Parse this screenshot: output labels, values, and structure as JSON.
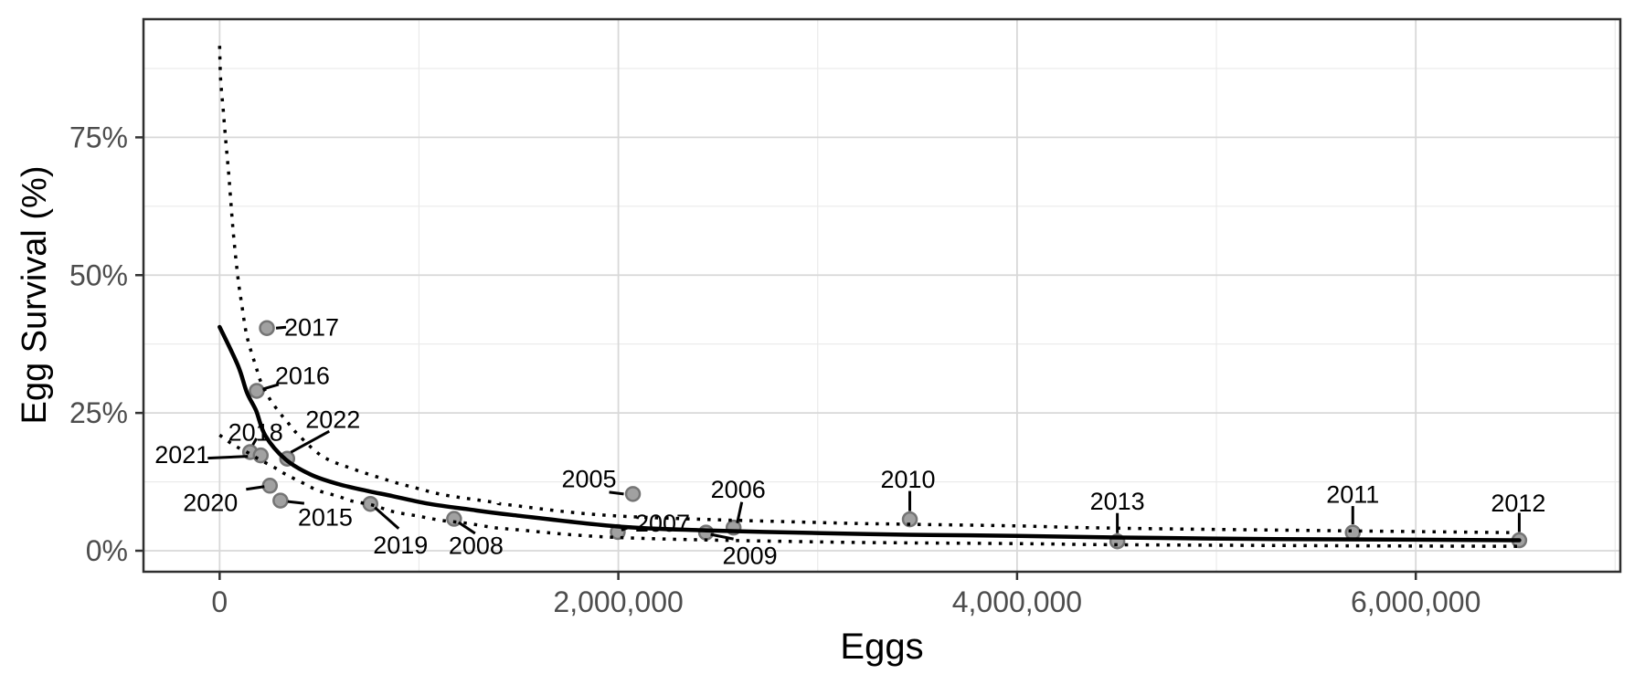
{
  "chart_data": {
    "type": "scatter",
    "title": "",
    "xlabel": "Eggs",
    "ylabel": "Egg Survival (%)",
    "legend": "none",
    "grid": "on",
    "x_axis": {
      "lim": [
        -382000,
        7026000
      ],
      "ticks": [
        {
          "value": 0,
          "label": "0"
        },
        {
          "value": 2000000,
          "label": "2,000,000"
        },
        {
          "value": 4000000,
          "label": "4,000,000"
        },
        {
          "value": 6000000,
          "label": "6,000,000"
        }
      ],
      "minor": [
        1000000,
        3000000,
        5000000,
        7000000
      ]
    },
    "y_axis": {
      "lim": [
        -3.81,
        96.44
      ],
      "ticks": [
        {
          "value": 0,
          "label": "0%"
        },
        {
          "value": 25,
          "label": "25%"
        },
        {
          "value": 50,
          "label": "50%"
        },
        {
          "value": 75,
          "label": "75%"
        }
      ],
      "minor": [
        12.5,
        37.5,
        62.5,
        87.5
      ]
    },
    "points": [
      {
        "year": "2005",
        "eggs": 2073000,
        "survival_pct": 10.3,
        "label": [
          -48,
          -17
        ],
        "leader": [
          -26,
          -2,
          -10,
          0
        ]
      },
      {
        "year": "2006",
        "eggs": 2578000,
        "survival_pct": 4.2,
        "label": [
          5,
          -42
        ],
        "leader": [
          4,
          -5,
          9,
          -28
        ]
      },
      {
        "year": "2007",
        "eggs": 1997000,
        "survival_pct": 3.4,
        "label": [
          49,
          -10
        ],
        "leader": [
          4,
          -2,
          15,
          -6
        ]
      },
      {
        "year": "2008",
        "eggs": 1176000,
        "survival_pct": 5.8,
        "label": [
          24,
          29
        ],
        "leader": [
          5,
          4,
          23,
          16
        ]
      },
      {
        "year": "2009",
        "eggs": 2440000,
        "survival_pct": 3.3,
        "label": [
          48,
          25
        ],
        "leader": [
          5,
          2,
          30,
          7
        ]
      },
      {
        "year": "2010",
        "eggs": 3462000,
        "survival_pct": 5.7,
        "label": [
          -2,
          -44
        ],
        "leader": [
          0,
          -9,
          0,
          -31
        ]
      },
      {
        "year": "2011",
        "eggs": 5684000,
        "survival_pct": 3.3,
        "label": [
          0,
          -42
        ],
        "leader": [
          0,
          -9,
          0,
          -29
        ]
      },
      {
        "year": "2012",
        "eggs": 6519000,
        "survival_pct": 1.9,
        "label": [
          -1,
          -41
        ],
        "leader": [
          0,
          -9,
          0,
          -30
        ]
      },
      {
        "year": "2013",
        "eggs": 4503000,
        "survival_pct": 1.7,
        "label": [
          0,
          -44
        ],
        "leader": [
          0,
          -9,
          0,
          -31
        ]
      },
      {
        "year": "2015",
        "eggs": 305000,
        "survival_pct": 9.1,
        "label": [
          49,
          18
        ],
        "leader": [
          8,
          1,
          26,
          3
        ]
      },
      {
        "year": "2016",
        "eggs": 186000,
        "survival_pct": 29.0,
        "label": [
          50,
          -17
        ],
        "leader": [
          7,
          -2,
          24,
          -7
        ]
      },
      {
        "year": "2017",
        "eggs": 237000,
        "survival_pct": 40.4,
        "label": [
          49,
          -1
        ],
        "leader": [
          10,
          0,
          21,
          -1
        ]
      },
      {
        "year": "2018",
        "eggs": 153000,
        "survival_pct": 17.9,
        "label": [
          6,
          -22
        ],
        "leader": [
          3,
          -8,
          7,
          -15
        ]
      },
      {
        "year": "2019",
        "eggs": 756000,
        "survival_pct": 8.5,
        "label": [
          33,
          45
        ],
        "leader": [
          5,
          4,
          31,
          27
        ]
      },
      {
        "year": "2020",
        "eggs": 252000,
        "survival_pct": 11.8,
        "label": [
          -65,
          18
        ],
        "leader": [
          -26,
          4,
          -6,
          1
        ]
      },
      {
        "year": "2021",
        "eggs": 206000,
        "survival_pct": 17.3,
        "label": [
          -86,
          -1
        ],
        "leader": [
          -58,
          3,
          -14,
          1
        ]
      },
      {
        "year": "2022",
        "eggs": 339000,
        "survival_pct": 16.7,
        "label": [
          50,
          -43
        ],
        "leader": [
          46,
          -30,
          4,
          -7
        ]
      }
    ],
    "fit_line": [
      [
        0,
        40.6
      ],
      [
        92000,
        33.6
      ],
      [
        137000,
        28.7
      ],
      [
        183000,
        25.4
      ],
      [
        229000,
        20.9
      ],
      [
        330000,
        16.6
      ],
      [
        458000,
        13.8
      ],
      [
        595000,
        12.1
      ],
      [
        747000,
        10.8
      ],
      [
        870000,
        9.9
      ],
      [
        1053000,
        8.5
      ],
      [
        1250000,
        7.5
      ],
      [
        1466000,
        6.5
      ],
      [
        2000000,
        4.4
      ],
      [
        2440000,
        3.7
      ],
      [
        3020000,
        3.2
      ],
      [
        3460000,
        2.9
      ],
      [
        4000000,
        2.7
      ],
      [
        4500000,
        2.4
      ],
      [
        5300000,
        2.1
      ],
      [
        6000000,
        2.0
      ],
      [
        6519000,
        1.9
      ]
    ],
    "ci_upper": [
      [
        0,
        91.6
      ],
      [
        5000,
        85.5
      ],
      [
        18000,
        79.9
      ],
      [
        32000,
        73.9
      ],
      [
        46000,
        68.1
      ],
      [
        69000,
        57.5
      ],
      [
        92000,
        49.5
      ],
      [
        110000,
        44.9
      ],
      [
        137000,
        38.9
      ],
      [
        183000,
        33.3
      ],
      [
        206000,
        30.7
      ],
      [
        252000,
        27.5
      ],
      [
        298000,
        25.2
      ],
      [
        343000,
        23.2
      ],
      [
        398000,
        20.9
      ],
      [
        517000,
        17.1
      ],
      [
        664000,
        14.9
      ],
      [
        861000,
        12.6
      ],
      [
        994000,
        11.3
      ],
      [
        1131000,
        10.1
      ],
      [
        1374000,
        8.8
      ],
      [
        1457000,
        8.3
      ],
      [
        2000000,
        6.3
      ],
      [
        3020000,
        5.1
      ],
      [
        3460000,
        4.8
      ],
      [
        4000000,
        4.5
      ],
      [
        4500000,
        4.1
      ],
      [
        5680000,
        3.6
      ],
      [
        6470000,
        3.3
      ]
    ],
    "ci_lower": [
      [
        0,
        21.0
      ],
      [
        69000,
        19.2
      ],
      [
        137000,
        17.9
      ],
      [
        197000,
        16.6
      ],
      [
        275000,
        15.1
      ],
      [
        334000,
        13.8
      ],
      [
        412000,
        12.4
      ],
      [
        495000,
        10.9
      ],
      [
        595000,
        9.9
      ],
      [
        655000,
        9.1
      ],
      [
        765000,
        8.3
      ],
      [
        870000,
        7.1
      ],
      [
        994000,
        6.3
      ],
      [
        1113000,
        5.5
      ],
      [
        1237000,
        5.0
      ],
      [
        1360000,
        4.3
      ],
      [
        1466000,
        3.9
      ],
      [
        2000000,
        2.4
      ],
      [
        3020000,
        1.6
      ],
      [
        4000000,
        1.3
      ],
      [
        4500000,
        1.1
      ],
      [
        5680000,
        0.9
      ],
      [
        6519000,
        0.8
      ]
    ]
  },
  "style": {
    "point_fill": "#a1a1a1",
    "point_stroke": "#757575",
    "curve_color": "#000000",
    "leader_color": "#000000",
    "label_color": "#000000",
    "grid_major": "#d8d8d8",
    "grid_minor": "#eaeaea",
    "axis_text": "#4d4d4d",
    "panel_border": "#2f2f2f",
    "background": "#ffffff"
  }
}
